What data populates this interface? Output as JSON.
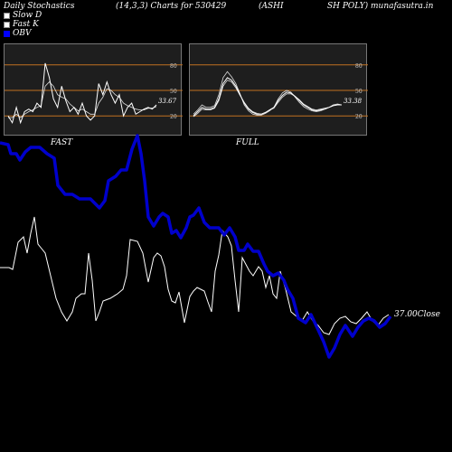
{
  "header": {
    "left": "Daily Stochastics",
    "params": "(14,3,3) Charts for 530429",
    "name_a": "(ASHI",
    "name_b": "SH POLY) munafasutra.in"
  },
  "legend": [
    {
      "label": "Slow  D",
      "color": "#ffffff",
      "border": "#888888"
    },
    {
      "label": "Fast K",
      "color": "#ffffff",
      "border": "#888888"
    },
    {
      "label": "OBV",
      "color": "#0000ff",
      "border": "#0000ff"
    }
  ],
  "colors": {
    "panel_bg": "#1e1e1e",
    "level_line": "#c07020",
    "obv": "#0000cc",
    "price": "#ffffff"
  },
  "chart_data": [
    {
      "type": "line",
      "label": "FAST",
      "ylim": [
        0,
        100
      ],
      "levels": [
        80,
        50,
        20
      ],
      "tick_labels": [
        "80",
        "50",
        "20"
      ],
      "last_value_label": "33.67",
      "series": [
        {
          "name": "Fast K",
          "values": [
            20,
            12,
            30,
            12,
            25,
            28,
            25,
            35,
            30,
            82,
            65,
            40,
            30,
            55,
            38,
            25,
            30,
            22,
            35,
            20,
            15,
            20,
            58,
            45,
            60,
            45,
            35,
            45,
            20,
            30,
            35,
            22,
            25,
            28,
            30,
            28,
            33
          ]
        },
        {
          "name": "Slow D",
          "values": [
            18,
            18,
            22,
            18,
            22,
            25,
            27,
            30,
            32,
            55,
            60,
            55,
            45,
            42,
            40,
            34,
            30,
            26,
            28,
            25,
            22,
            22,
            35,
            42,
            52,
            50,
            45,
            42,
            35,
            32,
            30,
            28,
            27,
            27,
            29,
            29,
            31
          ]
        }
      ]
    },
    {
      "type": "line",
      "label": "FULL",
      "ylim": [
        0,
        100
      ],
      "levels": [
        80,
        50,
        20
      ],
      "tick_labels": [
        "80",
        "50",
        "20"
      ],
      "last_value_label": "33.38",
      "series": [
        {
          "name": "Slow D",
          "values": [
            20,
            25,
            30,
            28,
            28,
            30,
            40,
            58,
            65,
            62,
            55,
            45,
            35,
            28,
            24,
            22,
            22,
            24,
            27,
            30,
            38,
            44,
            48,
            47,
            43,
            38,
            33,
            30,
            27,
            26,
            27,
            28,
            30,
            32,
            33,
            33
          ]
        },
        {
          "name": "Fast K",
          "values": [
            22,
            27,
            33,
            30,
            30,
            32,
            45,
            65,
            72,
            66,
            58,
            46,
            33,
            26,
            22,
            21,
            21,
            23,
            26,
            30,
            40,
            47,
            50,
            48,
            42,
            36,
            31,
            28,
            26,
            25,
            26,
            28,
            30,
            33,
            34,
            33
          ]
        },
        {
          "name": "Slow D 2",
          "values": [
            19,
            23,
            28,
            27,
            27,
            29,
            38,
            55,
            62,
            60,
            53,
            44,
            36,
            29,
            25,
            23,
            22,
            24,
            27,
            29,
            36,
            42,
            46,
            46,
            43,
            39,
            34,
            31,
            28,
            27,
            28,
            29,
            30,
            32,
            33,
            33
          ]
        }
      ]
    },
    {
      "type": "line",
      "label": "main",
      "series": [
        {
          "name": "OBV",
          "values": [
            [
              0,
              158
            ],
            [
              9,
              160
            ],
            [
              12,
              170
            ],
            [
              18,
              170
            ],
            [
              22,
              177
            ],
            [
              28,
              168
            ],
            [
              34,
              163
            ],
            [
              44,
              163
            ],
            [
              52,
              170
            ],
            [
              60,
              175
            ],
            [
              64,
              205
            ],
            [
              72,
              215
            ],
            [
              80,
              215
            ],
            [
              88,
              220
            ],
            [
              100,
              220
            ],
            [
              110,
              230
            ],
            [
              116,
              222
            ],
            [
              120,
              200
            ],
            [
              128,
              195
            ],
            [
              134,
              188
            ],
            [
              140,
              188
            ],
            [
              146,
              165
            ],
            [
              152,
              150
            ],
            [
              156,
              170
            ],
            [
              160,
              200
            ],
            [
              164,
              240
            ],
            [
              170,
              250
            ],
            [
              176,
              240
            ],
            [
              180,
              236
            ],
            [
              186,
              240
            ],
            [
              190,
              258
            ],
            [
              195,
              255
            ],
            [
              200,
              263
            ],
            [
              206,
              252
            ],
            [
              210,
              240
            ],
            [
              214,
              238
            ],
            [
              220,
              230
            ],
            [
              226,
              246
            ],
            [
              232,
              252
            ],
            [
              242,
              252
            ],
            [
              248,
              260
            ],
            [
              254,
              252
            ],
            [
              260,
              262
            ],
            [
              264,
              277
            ],
            [
              270,
              277
            ],
            [
              274,
              270
            ],
            [
              280,
              278
            ],
            [
              286,
              278
            ],
            [
              292,
              292
            ],
            [
              296,
              300
            ],
            [
              302,
              305
            ],
            [
              308,
              302
            ],
            [
              314,
              310
            ],
            [
              318,
              320
            ],
            [
              324,
              330
            ],
            [
              330,
              352
            ],
            [
              338,
              357
            ],
            [
              344,
              348
            ],
            [
              352,
              365
            ],
            [
              358,
              378
            ],
            [
              364,
              395
            ],
            [
              370,
              385
            ],
            [
              376,
              370
            ],
            [
              382,
              360
            ],
            [
              390,
              372
            ],
            [
              396,
              362
            ],
            [
              402,
              355
            ],
            [
              408,
              352
            ],
            [
              414,
              355
            ],
            [
              420,
              362
            ],
            [
              426,
              358
            ],
            [
              432,
              350
            ]
          ]
        },
        {
          "name": "Close",
          "values": [
            [
              0,
              296
            ],
            [
              10,
              296
            ],
            [
              14,
              298
            ],
            [
              20,
              268
            ],
            [
              26,
              262
            ],
            [
              30,
              280
            ],
            [
              34,
              258
            ],
            [
              38,
              240
            ],
            [
              42,
              270
            ],
            [
              46,
              275
            ],
            [
              50,
              280
            ],
            [
              56,
              305
            ],
            [
              62,
              330
            ],
            [
              68,
              345
            ],
            [
              74,
              355
            ],
            [
              80,
              345
            ],
            [
              84,
              330
            ],
            [
              90,
              325
            ],
            [
              94,
              325
            ],
            [
              98,
              280
            ],
            [
              102,
              310
            ],
            [
              106,
              355
            ],
            [
              110,
              345
            ],
            [
              114,
              333
            ],
            [
              122,
              330
            ],
            [
              130,
              325
            ],
            [
              136,
              320
            ],
            [
              140,
              305
            ],
            [
              144,
              265
            ],
            [
              152,
              267
            ],
            [
              158,
              280
            ],
            [
              164,
              312
            ],
            [
              170,
              285
            ],
            [
              174,
              280
            ],
            [
              178,
              283
            ],
            [
              182,
              295
            ],
            [
              186,
              320
            ],
            [
              190,
              333
            ],
            [
              194,
              335
            ],
            [
              198,
              323
            ],
            [
              204,
              357
            ],
            [
              210,
              328
            ],
            [
              214,
              322
            ],
            [
              218,
              318
            ],
            [
              222,
              320
            ],
            [
              226,
              322
            ],
            [
              230,
              334
            ],
            [
              234,
              345
            ],
            [
              238,
              300
            ],
            [
              242,
              282
            ],
            [
              246,
              255
            ],
            [
              252,
              262
            ],
            [
              256,
              272
            ],
            [
              260,
              310
            ],
            [
              264,
              345
            ],
            [
              268,
              285
            ],
            [
              276,
              300
            ],
            [
              280,
              305
            ],
            [
              286,
              295
            ],
            [
              290,
              300
            ],
            [
              294,
              318
            ],
            [
              298,
              305
            ],
            [
              302,
              325
            ],
            [
              306,
              330
            ],
            [
              310,
              300
            ],
            [
              316,
              320
            ],
            [
              322,
              345
            ],
            [
              328,
              350
            ],
            [
              334,
              355
            ],
            [
              340,
              345
            ],
            [
              346,
              355
            ],
            [
              352,
              360
            ],
            [
              358,
              368
            ],
            [
              364,
              370
            ],
            [
              370,
              358
            ],
            [
              376,
              352
            ],
            [
              382,
              350
            ],
            [
              388,
              356
            ],
            [
              394,
              358
            ],
            [
              400,
              352
            ],
            [
              406,
              345
            ],
            [
              412,
              355
            ],
            [
              418,
              360
            ],
            [
              424,
              352
            ],
            [
              430,
              348
            ]
          ]
        }
      ],
      "last_value_label": "37.00Close"
    }
  ]
}
